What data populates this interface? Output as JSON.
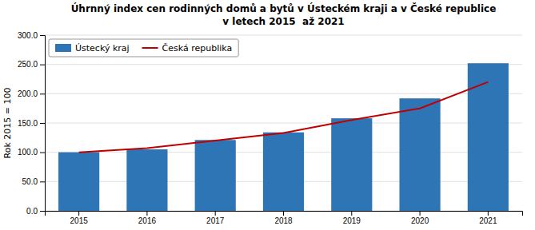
{
  "chart_data": {
    "type": "bar",
    "title": "Úhrnný index cen rodinných domů a bytů v Ústeckém kraji a v České republice",
    "subtitle": "v letech 2015  až 2021",
    "ylabel": "Rok 2015 = 100",
    "categories": [
      "2015",
      "2016",
      "2017",
      "2018",
      "2019",
      "2020",
      "2021"
    ],
    "series": [
      {
        "name": "Ústecký kraj",
        "type": "bar",
        "color": "#2E75B6",
        "values": [
          100.0,
          105.0,
          121.0,
          134.0,
          158.0,
          192.0,
          252.0
        ]
      },
      {
        "name": "Česká republika",
        "type": "line",
        "color": "#C00000",
        "values": [
          100.0,
          107.0,
          120.0,
          133.0,
          155.0,
          175.0,
          220.0
        ]
      }
    ],
    "ylim": [
      0,
      300
    ],
    "yticks": [
      {
        "value": 0,
        "label": "0.0"
      },
      {
        "value": 50,
        "label": "50.0"
      },
      {
        "value": 100,
        "label": "100.0"
      },
      {
        "value": 150,
        "label": "150.0"
      },
      {
        "value": 200,
        "label": "200.0"
      },
      {
        "value": 250,
        "label": "250.0"
      },
      {
        "value": 300,
        "label": "300.0"
      }
    ],
    "grid": true,
    "legend": "upper left"
  }
}
